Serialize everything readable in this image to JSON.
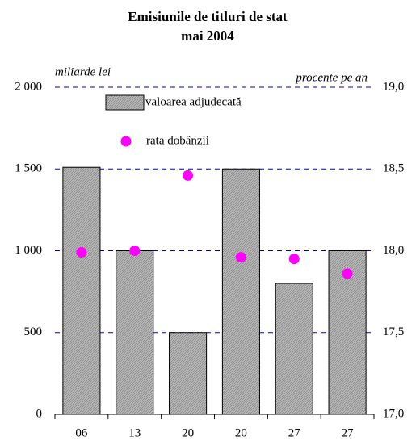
{
  "chart_data": {
    "type": "bar",
    "title": [
      "Emisiunile de titluri de stat",
      "mai 2004"
    ],
    "y_label": "miliarde lei",
    "y2_label": "procente pe an",
    "categories": [
      "06",
      "13",
      "20",
      "20",
      "27",
      "27"
    ],
    "series": [
      {
        "name": "valoarea adjudecată",
        "type": "bar",
        "color": "#b0b0b0",
        "values": [
          1510,
          1000,
          500,
          1500,
          800,
          1000
        ]
      },
      {
        "name": "rata dobânzii",
        "type": "scatter",
        "axis": "y2",
        "color": "#ff00ff",
        "values": [
          17.99,
          18.0,
          18.46,
          17.96,
          17.95,
          17.86
        ]
      }
    ],
    "ylim": [
      0,
      2000
    ],
    "yticks": [
      0,
      500,
      {
        "value": 1000,
        "label": "1 000"
      },
      {
        "value": 1500,
        "label": "1 500"
      },
      {
        "value": 2000,
        "label": "2 000"
      }
    ],
    "y2lim": [
      17.0,
      19.0
    ],
    "y2ticks": [
      {
        "value": 17.0,
        "label": "17,0"
      },
      {
        "value": 17.5,
        "label": "17,5"
      },
      {
        "value": 18.0,
        "label": "18,0"
      },
      {
        "value": 18.5,
        "label": "18,5"
      },
      {
        "value": 19.0,
        "label": "19,0"
      }
    ],
    "grid": true
  }
}
